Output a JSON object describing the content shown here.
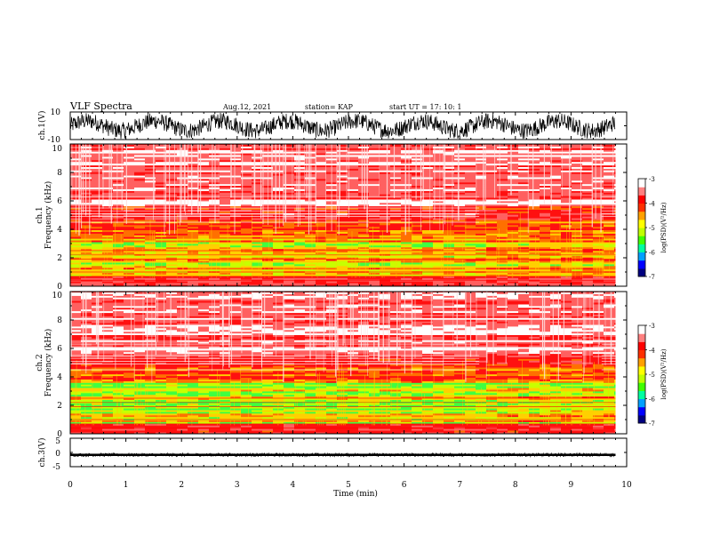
{
  "header": {
    "title": "VLF Spectra",
    "date": "Aug.12, 2021",
    "station": "station= KAP",
    "start": "start  UT =   17: 10: 1"
  },
  "colors": {
    "colorbar": [
      "#000080",
      "#0000ff",
      "#00a0ff",
      "#00ffa0",
      "#40ff00",
      "#c0ff00",
      "#ffff00",
      "#ffa000",
      "#ff3000",
      "#ff0000",
      "#ff8080",
      "#ffffff"
    ]
  },
  "chart_data": [
    {
      "type": "line",
      "panel": "ch1-waveform",
      "ylabel": "ch.1(V)",
      "ylim": [
        -10,
        10
      ],
      "y_ticks": [
        "10",
        "-10"
      ],
      "xlim": [
        0,
        10
      ],
      "data_extent": [
        0,
        9.8
      ]
    },
    {
      "type": "heatmap",
      "panel": "ch1-spectrogram",
      "ylabel": "ch.1\nFrequency (kHz)",
      "ylim": [
        0,
        10
      ],
      "y_ticks": [
        "0",
        "2",
        "4",
        "6",
        "8",
        "10"
      ],
      "xlim": [
        0,
        10
      ],
      "data_extent": [
        0,
        9.8
      ],
      "colorbar": {
        "label": "log(PSD)(V²/Hz)",
        "range": [
          -7,
          -3
        ],
        "ticks": [
          "-3",
          "-4",
          "-5",
          "-6",
          "-7"
        ]
      }
    },
    {
      "type": "heatmap",
      "panel": "ch2-spectrogram",
      "ylabel": "ch.2\nFrequency (kHz)",
      "ylim": [
        0,
        10
      ],
      "y_ticks": [
        "0",
        "2",
        "4",
        "6",
        "8",
        "10"
      ],
      "xlim": [
        0,
        10
      ],
      "data_extent": [
        0,
        9.8
      ],
      "colorbar": {
        "label": "log(PSD)(V²/Hz)",
        "range": [
          -7,
          -3
        ],
        "ticks": [
          "-3",
          "-4",
          "-5",
          "-6",
          "-7"
        ]
      }
    },
    {
      "type": "line",
      "panel": "ch3-waveform",
      "ylabel": "ch.3(V)",
      "ylim": [
        -5,
        5
      ],
      "y_ticks": [
        "5",
        "0",
        "-5"
      ],
      "xlim": [
        0,
        10
      ],
      "data_extent": [
        0,
        9.8
      ]
    }
  ],
  "xaxis": {
    "label": "Time (min)",
    "ticks": [
      "0",
      "1",
      "2",
      "3",
      "4",
      "5",
      "6",
      "7",
      "8",
      "9",
      "10"
    ]
  }
}
